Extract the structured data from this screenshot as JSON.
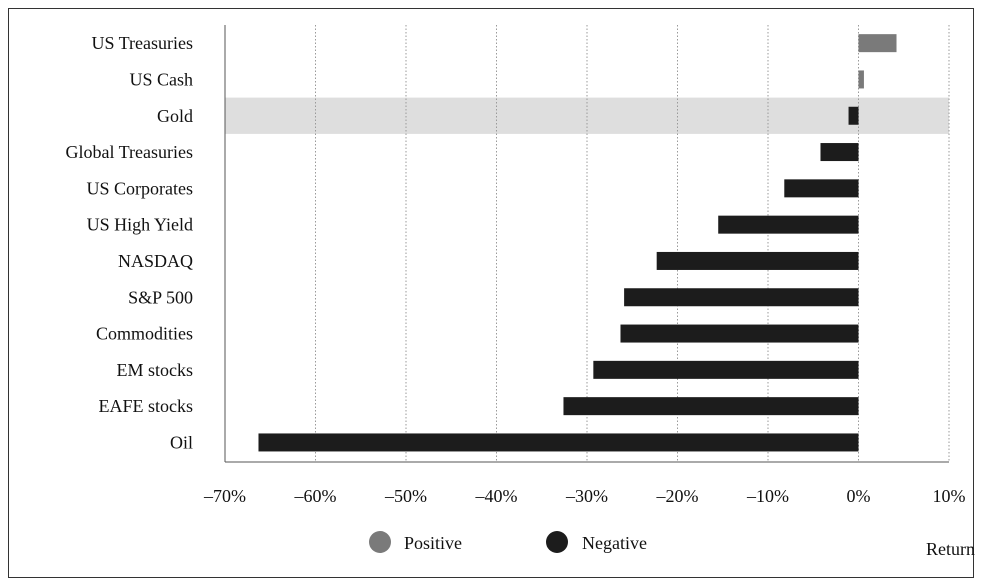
{
  "top_caption": "",
  "colors": {
    "positive": "#7a7a7a",
    "negative": "#1c1c1c",
    "highlight_band": "#dedede",
    "grid": "#9a9a9a",
    "axis": "#555555"
  },
  "legend": {
    "positive_label": "Positive",
    "negative_label": "Negative",
    "placement": "bottom-center"
  },
  "chart_data": {
    "type": "bar",
    "orientation": "horizontal",
    "categories": [
      "US Treasuries",
      "US Cash",
      "Gold",
      "Global Treasuries",
      "US Corporates",
      "US High Yield",
      "NASDAQ",
      "S&P 500",
      "Commodities",
      "EM stocks",
      "EAFE stocks",
      "Oil"
    ],
    "values": [
      4.2,
      0.6,
      -1.1,
      -4.2,
      -8.2,
      -15.5,
      -22.3,
      -25.9,
      -26.3,
      -29.3,
      -32.6,
      -66.3
    ],
    "xlabel": "Return",
    "xlim": [
      -70,
      10
    ],
    "xticks": [
      -70,
      -60,
      -50,
      -40,
      -30,
      -20,
      -10,
      0,
      10
    ],
    "xtick_labels": [
      "–70%",
      "–60%",
      "–50%",
      "–40%",
      "–30%",
      "–20%",
      "–10%",
      "0%",
      "10%"
    ],
    "highlighted_category": "Gold",
    "grid": "vertical dotted"
  }
}
